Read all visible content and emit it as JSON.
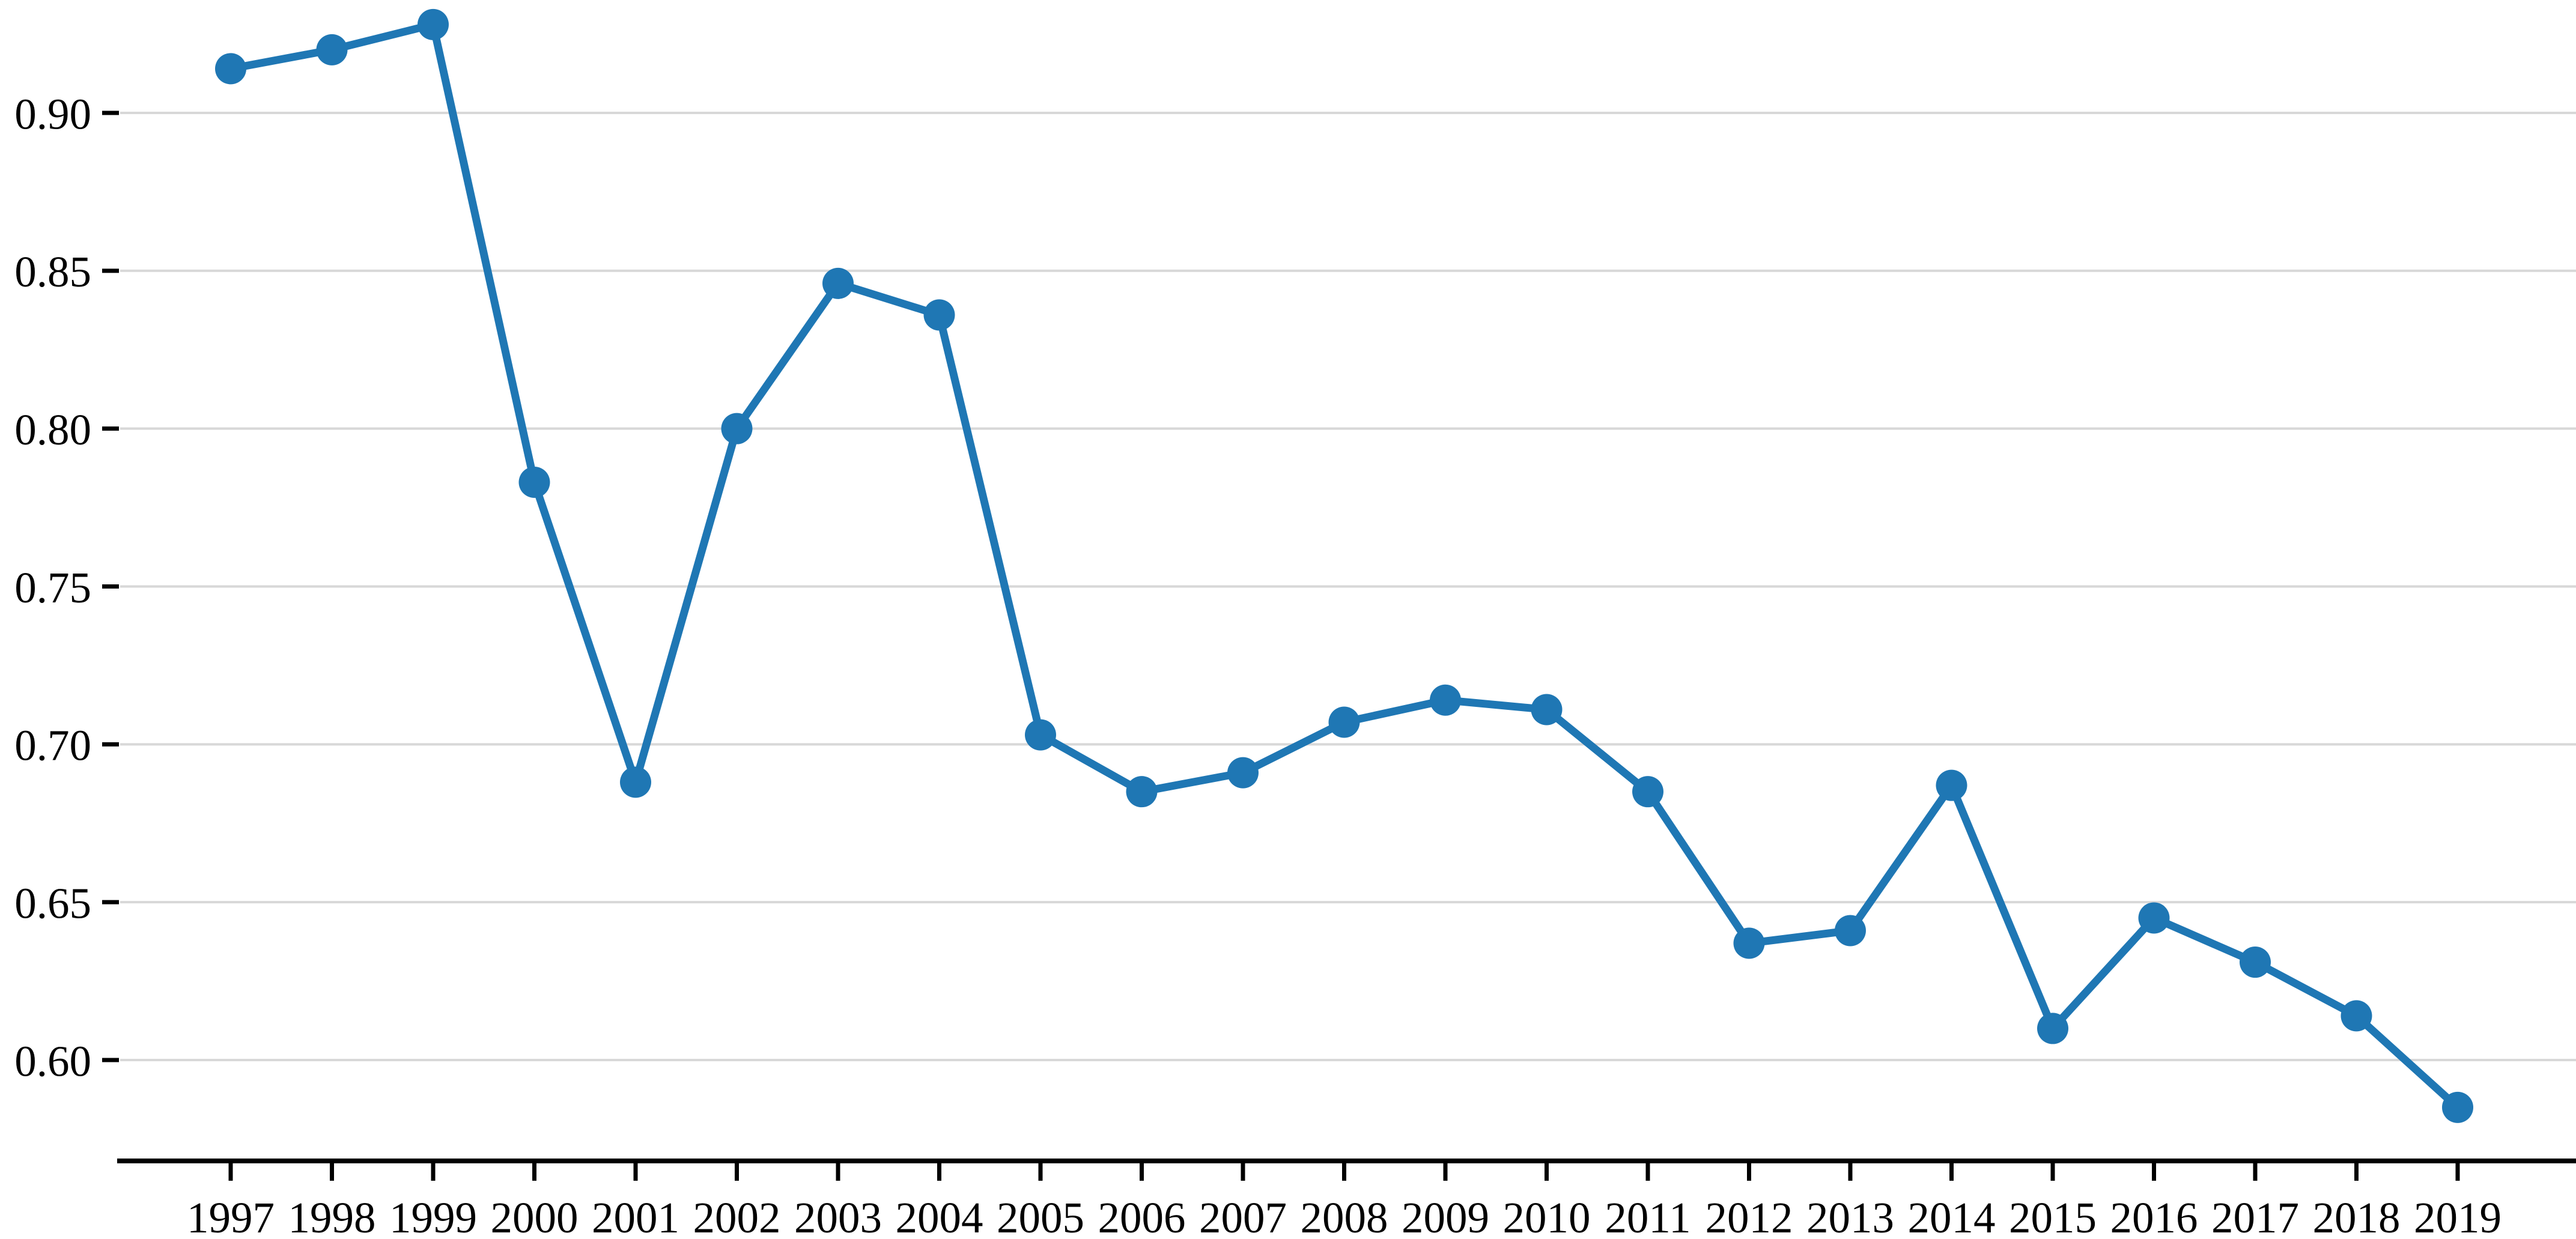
{
  "figure": {
    "background_color": "#ffffff"
  },
  "chart_data": {
    "type": "line",
    "title": "",
    "xlabel": "",
    "ylabel": "",
    "x_categories": [
      "1997",
      "1998",
      "1999",
      "2000",
      "2001",
      "2002",
      "2003",
      "2004",
      "2005",
      "2006",
      "2007",
      "2008",
      "2009",
      "2010",
      "2011",
      "2012",
      "2013",
      "2014",
      "2015",
      "2016",
      "2017",
      "2018",
      "2019"
    ],
    "series": [
      {
        "name": "series-1",
        "color": "#1f77b4",
        "marker": "circle",
        "values": [
          0.914,
          0.92,
          0.928,
          0.783,
          0.688,
          0.8,
          0.846,
          0.836,
          0.703,
          0.685,
          0.691,
          0.707,
          0.714,
          0.711,
          0.685,
          0.637,
          0.641,
          0.687,
          0.61,
          0.645,
          0.631,
          0.614,
          0.585
        ]
      }
    ],
    "yticks": [
      0.9,
      0.85,
      0.8,
      0.75,
      0.7,
      0.65,
      0.6
    ],
    "ytick_labels": [
      "0.90",
      "0.85",
      "0.80",
      "0.75",
      "0.70",
      "0.65",
      "0.60"
    ],
    "ylim": [
      0.568,
      0.936
    ],
    "grid": true,
    "grid_axis": "y",
    "legend": false,
    "colors": {
      "line": "#1f77b4",
      "marker": "#1f77b4",
      "gridline": "#d8d8d8",
      "axis": "#000000",
      "tick_label": "#000000"
    }
  }
}
